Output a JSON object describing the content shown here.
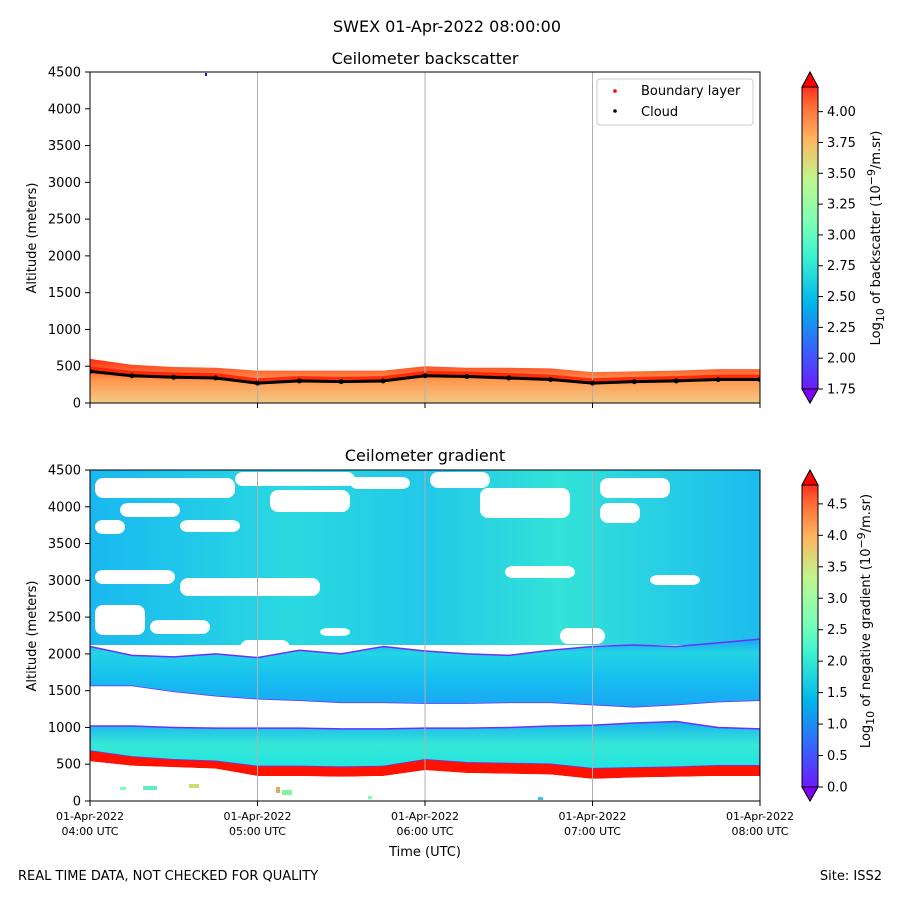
{
  "figure": {
    "suptitle": "SWEX 01-Apr-2022 08:00:00",
    "footer_left": "REAL TIME DATA, NOT CHECKED FOR QUALITY",
    "footer_right": "Site: ISS2"
  },
  "chart_data": [
    {
      "type": "heatmap",
      "title": "Ceilometer backscatter",
      "xlabel": "",
      "ylabel": "Altitude (meters)",
      "ylim": [
        0,
        4500
      ],
      "yticks": [
        0,
        500,
        1000,
        1500,
        2000,
        2500,
        3000,
        3500,
        4000,
        4500
      ],
      "colorbar": {
        "label": "Log10 of backscatter (10^-9/m.sr)",
        "label_parts": [
          "Log",
          "10",
          " of backscatter (10",
          "−9",
          "/m.sr)"
        ],
        "range": [
          1.75,
          4.2
        ],
        "ticks": [
          "1.75",
          "2.00",
          "2.25",
          "2.50",
          "2.75",
          "3.00",
          "3.25",
          "3.50",
          "3.75",
          "4.00"
        ],
        "colormap": "rainbow"
      },
      "legend": {
        "position": "top-right",
        "entries": [
          {
            "label": "Boundary layer",
            "color": "#ff0000"
          },
          {
            "label": "Cloud",
            "color": "#000000"
          }
        ]
      },
      "series": [
        {
          "name": "Cloud",
          "x_hours": [
            4.0,
            4.25,
            4.5,
            4.75,
            5.0,
            5.25,
            5.5,
            5.75,
            6.0,
            6.25,
            6.5,
            6.75,
            7.0,
            7.25,
            7.5,
            7.75,
            8.0
          ],
          "altitude_m": [
            430,
            370,
            350,
            340,
            270,
            300,
            290,
            300,
            370,
            360,
            340,
            320,
            270,
            290,
            300,
            320,
            320
          ]
        }
      ],
      "layers": {
        "signal_top_m": [
          600,
          520,
          490,
          480,
          440,
          440,
          440,
          440,
          500,
          480,
          480,
          470,
          420,
          430,
          440,
          460,
          460
        ]
      }
    },
    {
      "type": "heatmap",
      "title": "Ceilometer gradient",
      "xlabel": "Time (UTC)",
      "ylabel": "Altitude (meters)",
      "ylim": [
        0,
        4500
      ],
      "yticks": [
        0,
        500,
        1000,
        1500,
        2000,
        2500,
        3000,
        3500,
        4000,
        4500
      ],
      "colorbar": {
        "label": "Log10 of negative gradient (10^-9/m.sr)",
        "label_parts": [
          "Log",
          "10",
          " of negative gradient (10",
          "−9",
          "/m.sr)"
        ],
        "range": [
          0.0,
          4.8
        ],
        "ticks": [
          "0.0",
          "0.5",
          "1.0",
          "1.5",
          "2.0",
          "2.5",
          "3.0",
          "3.5",
          "4.0",
          "4.5"
        ],
        "colormap": "rainbow"
      },
      "x_hours": [
        4,
        5,
        6,
        7,
        8
      ],
      "xtick_dates": [
        "01-Apr-2022",
        "01-Apr-2022",
        "01-Apr-2022",
        "01-Apr-2022",
        "01-Apr-2022"
      ],
      "xtick_times": [
        "04:00 UTC",
        "05:00 UTC",
        "06:00 UTC",
        "07:00 UTC",
        "08:00 UTC"
      ],
      "layers": {
        "red_band_bottom_m": [
          540,
          480,
          460,
          440,
          340,
          340,
          330,
          340,
          420,
          380,
          370,
          360,
          300,
          320,
          330,
          340,
          340
        ],
        "red_band_top_m": [
          680,
          600,
          560,
          540,
          470,
          470,
          460,
          470,
          560,
          520,
          510,
          500,
          440,
          450,
          460,
          480,
          480
        ],
        "cyan_layer_top_m": [
          1020,
          1020,
          1000,
          990,
          990,
          990,
          980,
          980,
          990,
          990,
          1000,
          1020,
          1030,
          1060,
          1080,
          1000,
          980
        ],
        "aerosol_layer_bottom_m": [
          1560,
          1560,
          1480,
          1420,
          1380,
          1360,
          1330,
          1330,
          1320,
          1320,
          1330,
          1330,
          1300,
          1270,
          1300,
          1340,
          1360
        ],
        "aerosol_layer_top_m": [
          2100,
          1980,
          1960,
          2000,
          1950,
          2050,
          2000,
          2100,
          2040,
          2000,
          1980,
          2050,
          2100,
          2120,
          2100,
          2150,
          2200
        ]
      }
    }
  ]
}
